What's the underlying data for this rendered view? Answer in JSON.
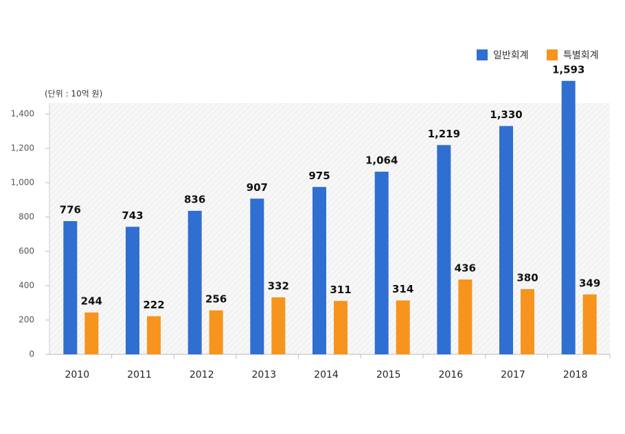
{
  "chart_data": {
    "type": "bar",
    "unit_label": "(단위 : 10억 원)",
    "categories": [
      "2010",
      "2011",
      "2012",
      "2013",
      "2014",
      "2015",
      "2016",
      "2017",
      "2018"
    ],
    "series": [
      {
        "name": "일반회계",
        "color": "#2f6fd1",
        "values": [
          776,
          743,
          836,
          907,
          975,
          1064,
          1219,
          1330,
          1593
        ],
        "value_labels": [
          "776",
          "743",
          "836",
          "907",
          "975",
          "1,064",
          "1,219",
          "1,330",
          "1,593"
        ]
      },
      {
        "name": "특별회계",
        "color": "#f7941d",
        "values": [
          244,
          222,
          256,
          332,
          311,
          314,
          436,
          380,
          349
        ]
      }
    ],
    "ylim": [
      0,
      1400
    ],
    "yticks": [
      0,
      200,
      400,
      600,
      800,
      {
        "value": 1000,
        "label": "1,000"
      },
      {
        "value": 1200,
        "label": "1,200"
      },
      {
        "value": 1400,
        "label": "1,400"
      }
    ],
    "legend": "top-right"
  }
}
